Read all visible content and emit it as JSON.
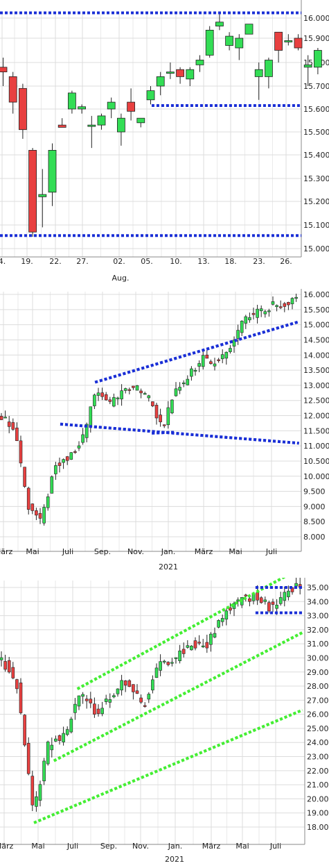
{
  "colors": {
    "up": "#33dd55",
    "down": "#e84040",
    "support": "#1a2fd6",
    "channel": "#44ee33",
    "grid": "#dcdcdc",
    "wick": "#222222"
  },
  "chart_data": [
    {
      "type": "candlestick",
      "ylim": [
        15.0,
        16.1
      ],
      "yticks": [
        "16.000",
        "15.900",
        "15.800",
        "15.700",
        "15.600",
        "15.500",
        "15.400",
        "15.300",
        "15.200",
        "15.100",
        "15.000"
      ],
      "xticks": [
        "4.",
        "19.",
        "22.",
        "27.",
        "02.",
        "05.",
        "10.",
        "13.",
        "18.",
        "23.",
        "26."
      ],
      "xsub": "Aug.",
      "candles": [
        {
          "o": 15.78,
          "h": 15.82,
          "l": 15.7,
          "c": 15.76
        },
        {
          "o": 15.74,
          "h": 15.76,
          "l": 15.58,
          "c": 15.63
        },
        {
          "o": 15.69,
          "h": 15.71,
          "l": 15.47,
          "c": 15.51
        },
        {
          "o": 15.42,
          "h": 15.43,
          "l": 15.05,
          "c": 15.07
        },
        {
          "o": 15.22,
          "h": 15.34,
          "l": 15.09,
          "c": 15.23
        },
        {
          "o": 15.24,
          "h": 15.45,
          "l": 15.18,
          "c": 15.42
        },
        {
          "o": 15.53,
          "h": 15.56,
          "l": 15.52,
          "c": 15.52
        },
        {
          "o": 15.6,
          "h": 15.68,
          "l": 15.58,
          "c": 15.67
        },
        {
          "o": 15.6,
          "h": 15.62,
          "l": 15.58,
          "c": 15.61
        },
        {
          "o": 15.53,
          "h": 15.57,
          "l": 15.43,
          "c": 15.53
        },
        {
          "o": 15.53,
          "h": 15.58,
          "l": 15.51,
          "c": 15.57
        },
        {
          "o": 15.6,
          "h": 15.65,
          "l": 15.56,
          "c": 15.63
        },
        {
          "o": 15.5,
          "h": 15.58,
          "l": 15.44,
          "c": 15.56
        },
        {
          "o": 15.63,
          "h": 15.69,
          "l": 15.55,
          "c": 15.59
        },
        {
          "o": 15.54,
          "h": 15.56,
          "l": 15.52,
          "c": 15.56
        },
        {
          "o": 15.64,
          "h": 15.7,
          "l": 15.62,
          "c": 15.68
        },
        {
          "o": 15.7,
          "h": 15.76,
          "l": 15.66,
          "c": 15.74
        },
        {
          "o": 15.76,
          "h": 15.8,
          "l": 15.73,
          "c": 15.76
        },
        {
          "o": 15.77,
          "h": 15.78,
          "l": 15.71,
          "c": 15.74
        },
        {
          "o": 15.73,
          "h": 15.78,
          "l": 15.7,
          "c": 15.77
        },
        {
          "o": 15.79,
          "h": 15.83,
          "l": 15.76,
          "c": 15.81
        },
        {
          "o": 15.83,
          "h": 15.96,
          "l": 15.82,
          "c": 15.94
        },
        {
          "o": 15.96,
          "h": 16.02,
          "l": 15.94,
          "c": 15.98
        },
        {
          "o": 15.87,
          "h": 15.93,
          "l": 15.85,
          "c": 15.91
        },
        {
          "o": 15.86,
          "h": 15.92,
          "l": 15.81,
          "c": 15.9
        },
        {
          "o": 15.92,
          "h": 15.97,
          "l": 15.92,
          "c": 15.97
        },
        {
          "o": 15.74,
          "h": 15.8,
          "l": 15.64,
          "c": 15.77
        },
        {
          "o": 15.74,
          "h": 15.82,
          "l": 15.69,
          "c": 15.81
        },
        {
          "o": 15.93,
          "h": 15.93,
          "l": 15.8,
          "c": 15.85
        },
        {
          "o": 15.89,
          "h": 15.92,
          "l": 15.87,
          "c": 15.89
        },
        {
          "o": 15.9,
          "h": 15.92,
          "l": 15.85,
          "c": 15.86
        },
        {
          "o": 15.78,
          "h": 15.83,
          "l": 15.7,
          "c": 15.79
        },
        {
          "o": 15.78,
          "h": 15.86,
          "l": 15.75,
          "c": 15.85
        }
      ],
      "lines": [
        {
          "kind": "support",
          "p": [
            [
              0,
              16.026
            ],
            [
              33,
              16.026
            ]
          ]
        },
        {
          "kind": "support",
          "p": [
            [
              15.1,
              15.615
            ],
            [
              33,
              15.615
            ]
          ]
        },
        {
          "kind": "support",
          "p": [
            [
              0,
              15.055
            ],
            [
              33,
              15.055
            ]
          ]
        }
      ]
    },
    {
      "type": "candlestick",
      "ylim": [
        7.6,
        16.2
      ],
      "yticks": [
        "16.000",
        "15.500",
        "15.000",
        "14.500",
        "14.000",
        "13.500",
        "13.000",
        "12.500",
        "12.000",
        "11.500",
        "11.000",
        "10.500",
        "10.000",
        "9.500",
        "9.000",
        "8.500",
        "8.000"
      ],
      "xticks": [
        "März",
        "Mai",
        "Juli",
        "Sep.",
        "Nov.",
        "Jan.",
        "März",
        "Mai",
        "Juli"
      ],
      "xsub": "2021",
      "lines": [
        {
          "kind": "support",
          "p": [
            [
              2.6,
              11.72
            ],
            [
              12.9,
              11.09
            ]
          ]
        },
        {
          "kind": "support",
          "p": [
            [
              4.1,
              13.1
            ],
            [
              12.9,
              15.1
            ]
          ]
        },
        {
          "kind": "support",
          "p": [
            [
              6.55,
              11.42
            ],
            [
              7.5,
              11.45
            ]
          ]
        }
      ]
    },
    {
      "type": "candlestick",
      "ylim": [
        17.0,
        36.2
      ],
      "yticks": [
        "35.000",
        "34.000",
        "33.000",
        "32.000",
        "31.000",
        "30.000",
        "29.000",
        "28.000",
        "27.000",
        "26.000",
        "25.000",
        "24.000",
        "23.000",
        "22.000",
        "21.000",
        "20.000",
        "19.000",
        "18.000"
      ],
      "xticks": [
        "März",
        "Mai",
        "Juli",
        "Sep.",
        "Nov.",
        "Jan.",
        "März",
        "Mai",
        "Juli"
      ],
      "xsub": "2021",
      "lines": [
        {
          "kind": "channel",
          "p": [
            [
              1.45,
              18.3
            ],
            [
              12.9,
              26.3
            ]
          ]
        },
        {
          "kind": "channel",
          "p": [
            [
              2.3,
              22.7
            ],
            [
              12.9,
              31.8
            ]
          ]
        },
        {
          "kind": "channel",
          "p": [
            [
              3.3,
              27.8
            ],
            [
              12.3,
              35.9
            ]
          ]
        },
        {
          "kind": "support",
          "p": [
            [
              10.9,
              35.0
            ],
            [
              12.9,
              35.0
            ]
          ]
        },
        {
          "kind": "support",
          "p": [
            [
              10.9,
              33.2
            ],
            [
              12.9,
              33.2
            ]
          ]
        }
      ]
    }
  ]
}
